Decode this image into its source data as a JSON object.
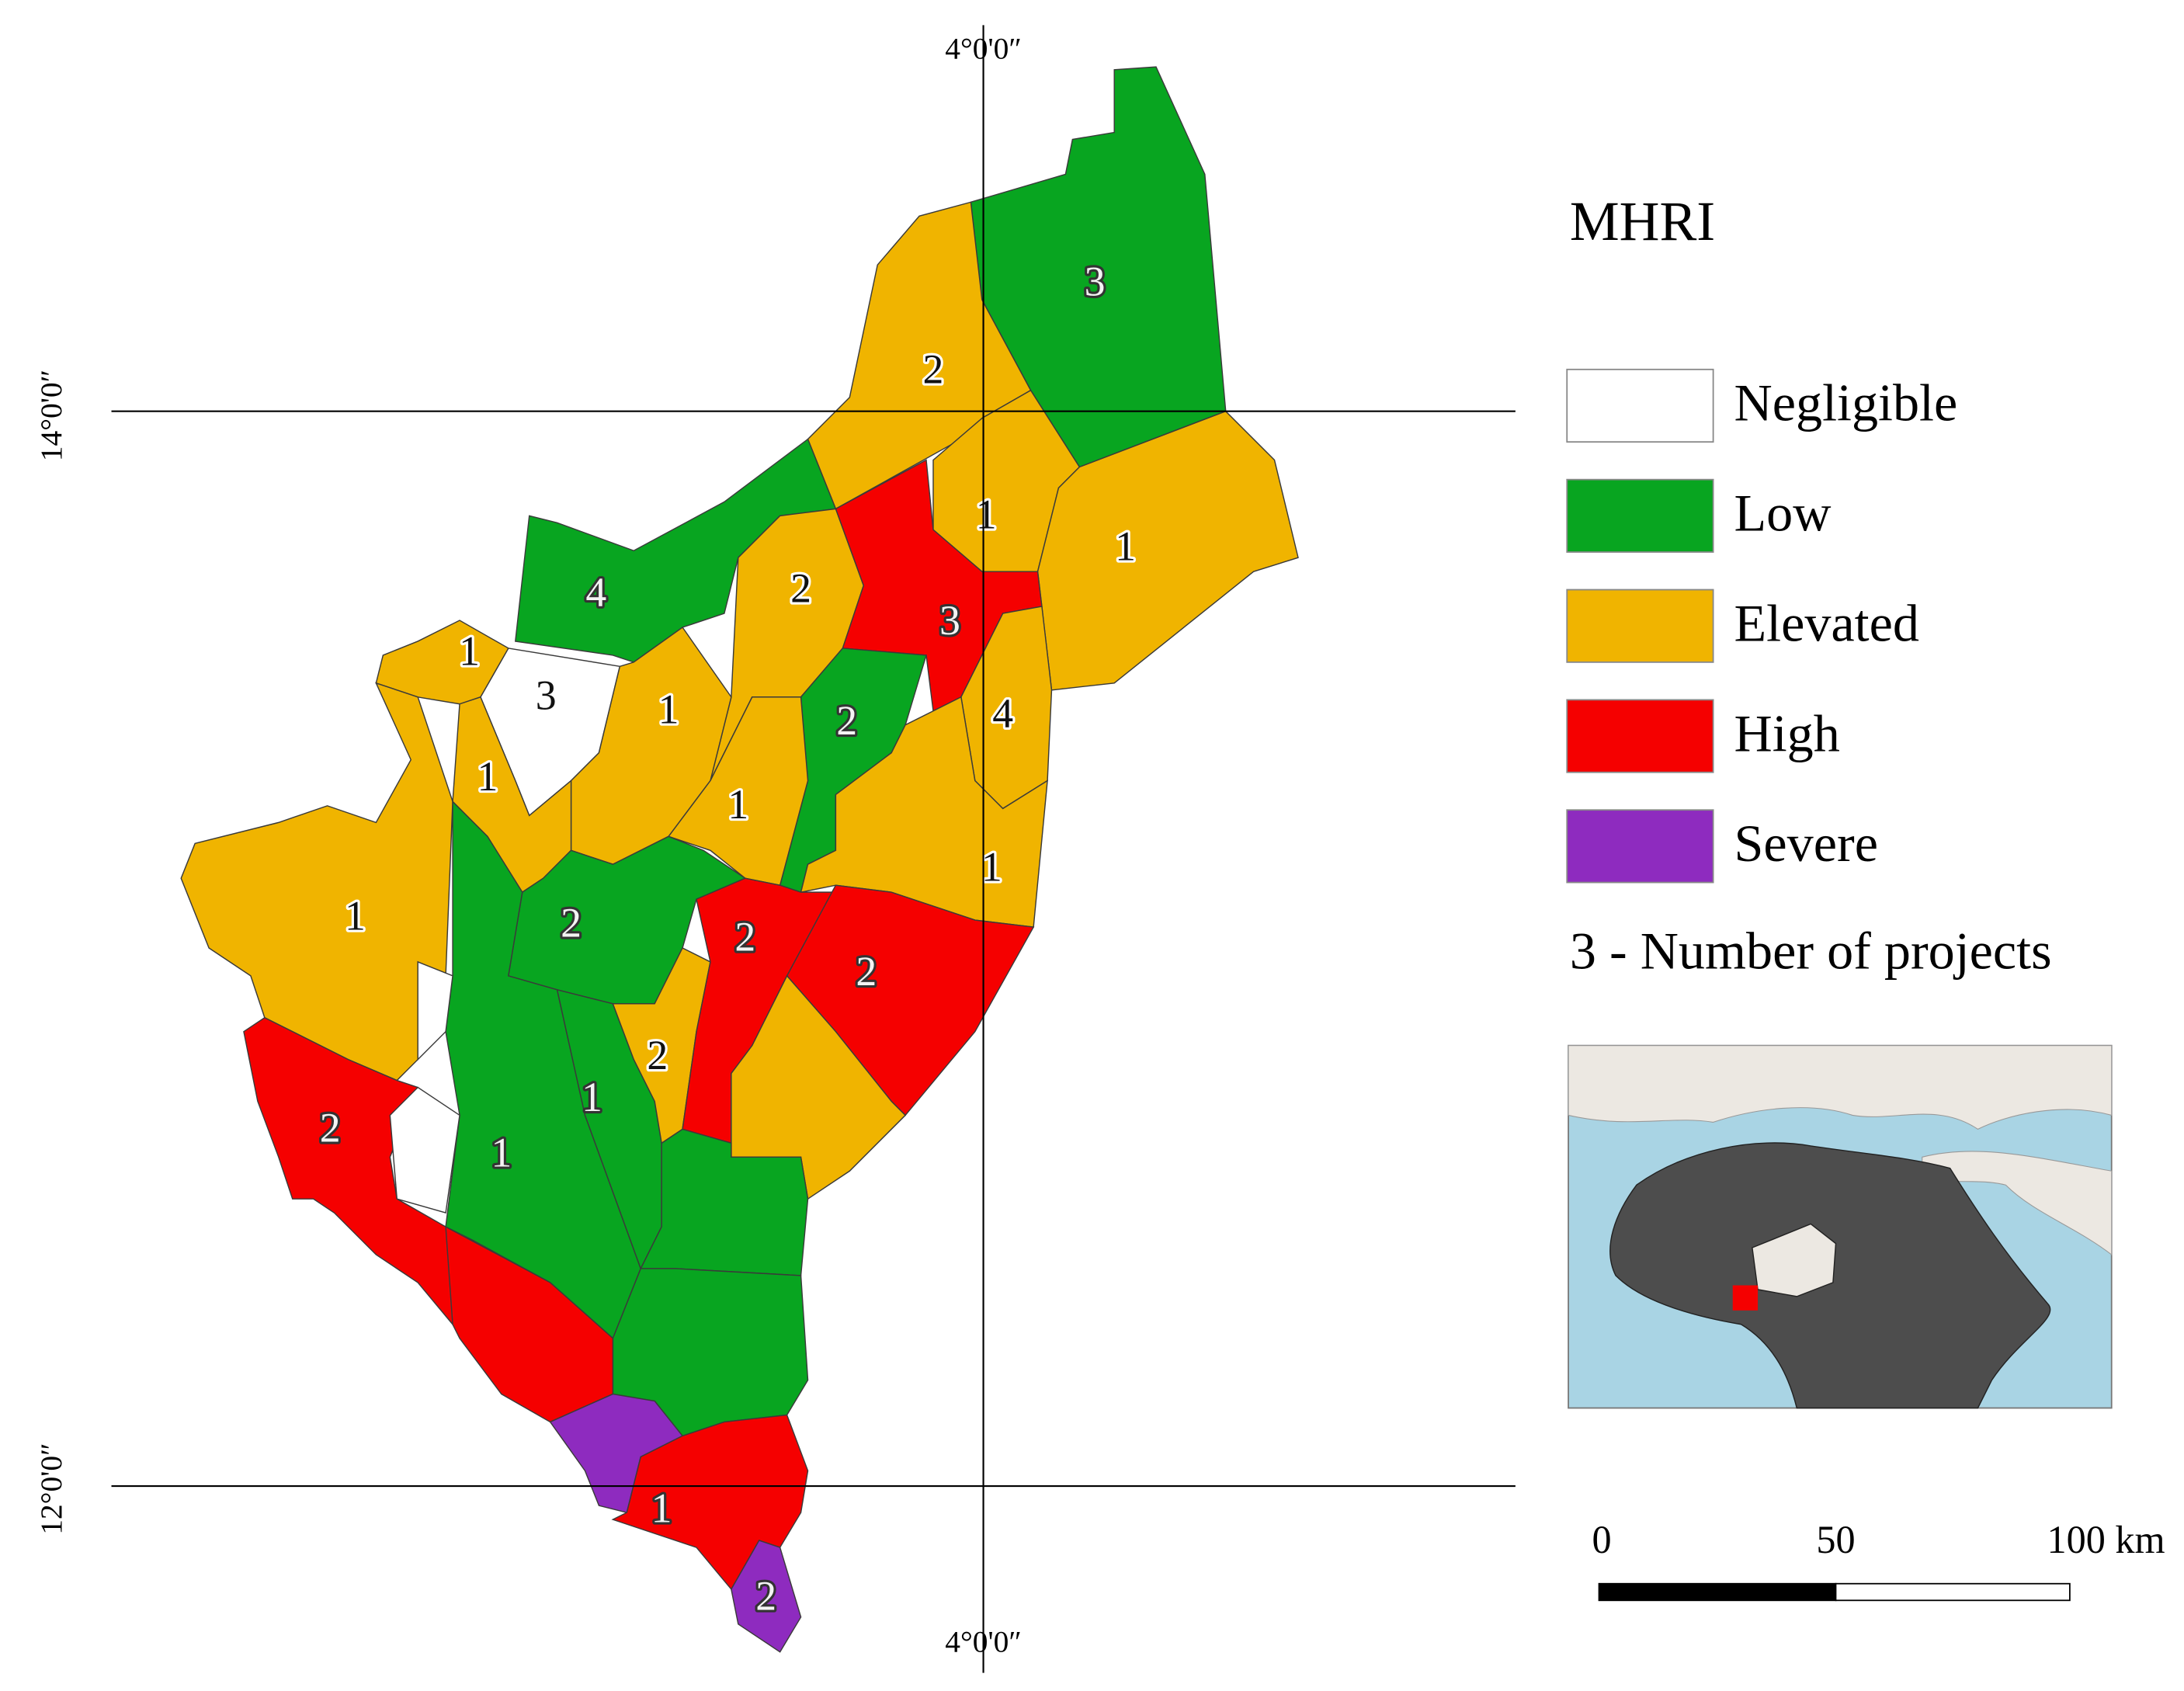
{
  "legend": {
    "title": "MHRI",
    "classes": [
      {
        "label": "Negligible",
        "color": "#ffffff"
      },
      {
        "label": "Low",
        "color": "#08a520"
      },
      {
        "label": "Elevated",
        "color": "#f0b400"
      },
      {
        "label": "High",
        "color": "#f50000"
      },
      {
        "label": "Severe",
        "color": "#8e2bbf"
      }
    ],
    "note": "3 - Number of projects"
  },
  "graticule": {
    "lon_top": "4°0'0″",
    "lon_bottom": "4°0'0″",
    "lat_upper": "14°0'0″",
    "lat_lower": "12°0'0″"
  },
  "scale_bar": {
    "labels": [
      "0",
      "50",
      "100 km"
    ]
  },
  "regions": [
    {
      "risk": "Low",
      "projects": 3
    },
    {
      "risk": "Elevated",
      "projects": 2
    },
    {
      "risk": "Elevated",
      "projects": 1
    },
    {
      "risk": "Elevated",
      "projects": 1
    },
    {
      "risk": "Low",
      "projects": 4
    },
    {
      "risk": "Elevated",
      "projects": 2
    },
    {
      "risk": "High",
      "projects": 3
    },
    {
      "risk": "Elevated",
      "projects": 4
    },
    {
      "risk": "Low",
      "projects": 2
    },
    {
      "risk": "Negligible",
      "projects": 3
    },
    {
      "risk": "Elevated",
      "projects": 1
    },
    {
      "risk": "Elevated",
      "projects": 1
    },
    {
      "risk": "Elevated",
      "projects": 1
    },
    {
      "risk": "Elevated",
      "projects": 1
    },
    {
      "risk": "Elevated",
      "projects": 1
    },
    {
      "risk": "Elevated",
      "projects": 1
    },
    {
      "risk": "Low",
      "projects": 2
    },
    {
      "risk": "Low",
      "projects": 1
    },
    {
      "risk": "Low",
      "projects": 1
    },
    {
      "risk": "Elevated",
      "projects": 2
    },
    {
      "risk": "High",
      "projects": 2
    },
    {
      "risk": "High",
      "projects": 2
    },
    {
      "risk": "Elevated"
    },
    {
      "risk": "Low"
    },
    {
      "risk": "Low"
    },
    {
      "risk": "High",
      "projects": 2
    },
    {
      "risk": "Negligible"
    },
    {
      "risk": "Negligible"
    },
    {
      "risk": "High"
    },
    {
      "risk": "Severe"
    },
    {
      "risk": "High",
      "projects": 1
    },
    {
      "risk": "Severe",
      "projects": 2
    }
  ]
}
